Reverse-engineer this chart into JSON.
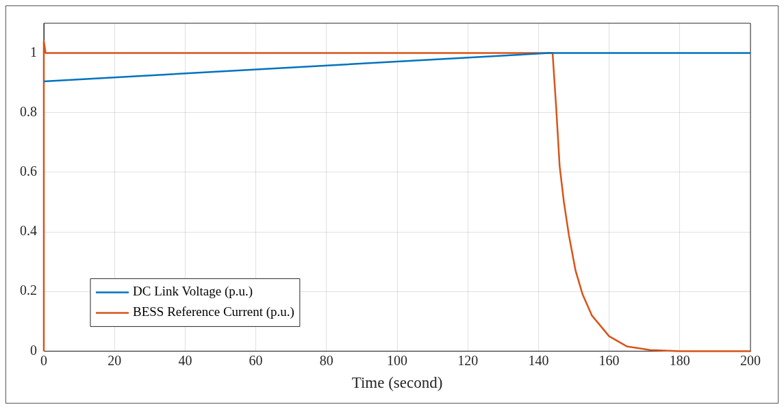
{
  "chart_data": {
    "type": "line",
    "xlabel": "Time (second)",
    "xlim": [
      0,
      200
    ],
    "xticks": [
      0,
      20,
      40,
      60,
      80,
      100,
      120,
      140,
      160,
      180,
      200
    ],
    "ylim": [
      0,
      1.1
    ],
    "yticks": [
      0,
      0.2,
      0.4,
      0.6,
      0.8,
      1
    ],
    "grid": true,
    "legend": "bottom left",
    "line_style": "solid",
    "marker": "none",
    "series": [
      {
        "name": "DC Link Voltage (p.u.)",
        "color": "#0072bd",
        "x": [
          0,
          143,
          200
        ],
        "values": [
          0.905,
          1.0,
          1.0
        ]
      },
      {
        "name": "BESS Reference Current (p.u.)",
        "color": "#d95319",
        "x": [
          0,
          0,
          0.5,
          144,
          145,
          146,
          147.2,
          148.6,
          150.5,
          152.5,
          155.1,
          160,
          165,
          171.6,
          180,
          200
        ],
        "values": [
          0,
          1.04,
          1.0,
          1.0,
          0.82,
          0.62,
          0.5,
          0.39,
          0.27,
          0.19,
          0.12,
          0.05,
          0.016,
          0.004,
          0,
          0
        ]
      }
    ]
  }
}
